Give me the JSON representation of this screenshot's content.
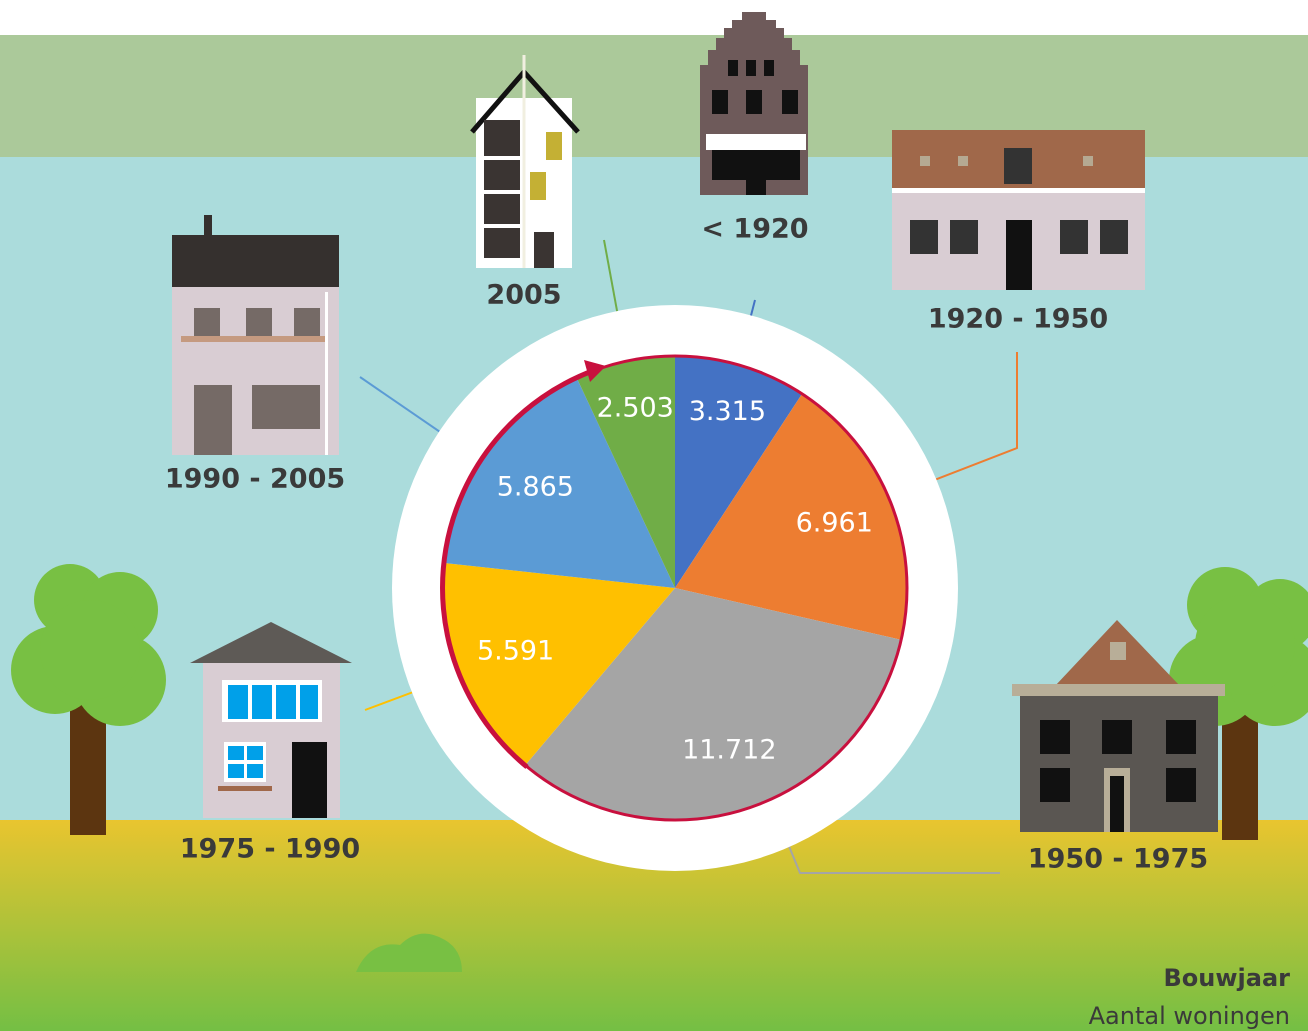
{
  "chart_data": {
    "type": "pie",
    "categories": [
      "< 1920",
      "1920 - 1950",
      "1950 - 1975",
      "1975 - 1990",
      "1990 - 2005",
      "2005"
    ],
    "values": [
      3315,
      6961,
      11712,
      5591,
      5865,
      2503
    ],
    "value_labels": [
      "3.315",
      "6.961",
      "11.712",
      "5.591",
      "5.865",
      "2.503"
    ],
    "colors": [
      "#4472c4",
      "#ed7d31",
      "#a5a5a5",
      "#ffc000",
      "#5b9bd5",
      "#70ad47"
    ],
    "legend": {
      "category_label": "Bouwjaar",
      "value_label": "Aantal woningen"
    }
  }
}
